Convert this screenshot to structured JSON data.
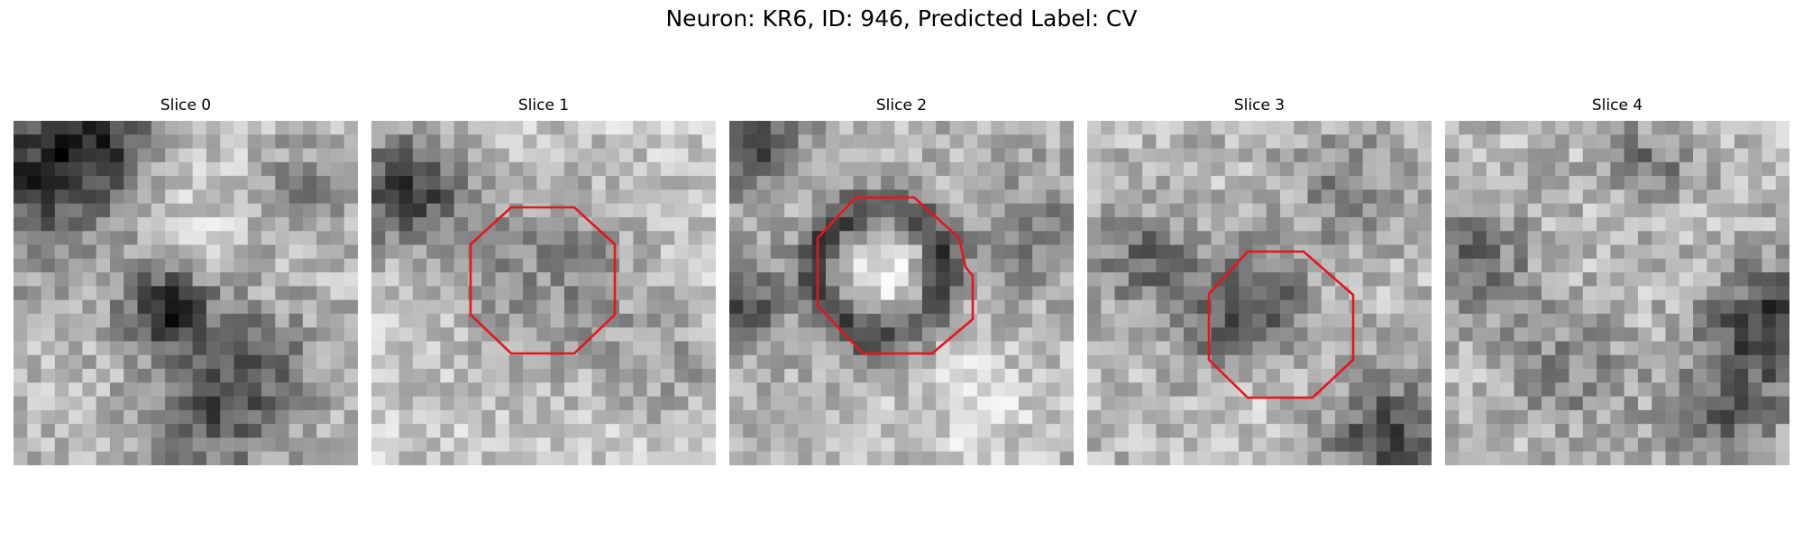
{
  "figure": {
    "title": "Neuron: KR6, ID: 946, Predicted Label: CV"
  },
  "colors": {
    "contour": "#e8141c",
    "background": "#ffffff",
    "colormap": "grayscale"
  },
  "slices": [
    {
      "label": "Slice 0",
      "has_contour": false
    },
    {
      "label": "Slice 1",
      "has_contour": true
    },
    {
      "label": "Slice 2",
      "has_contour": true
    },
    {
      "label": "Slice 3",
      "has_contour": true
    },
    {
      "label": "Slice 4",
      "has_contour": false
    }
  ]
}
